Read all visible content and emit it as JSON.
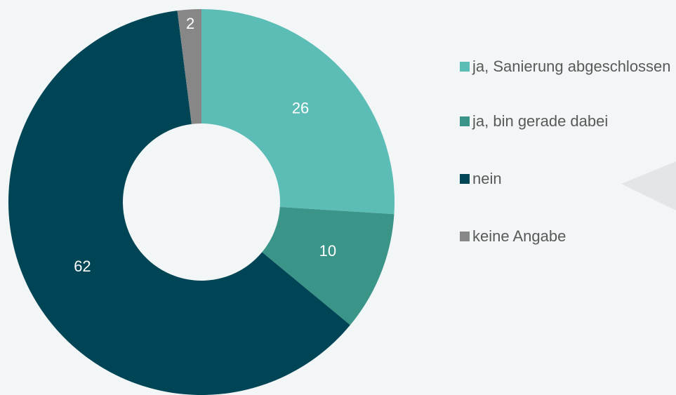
{
  "chart_data": {
    "type": "donut",
    "categories": [
      "ja, Sanierung abgeschlossen",
      "ja, bin gerade dabei",
      "nein",
      "keine Angabe"
    ],
    "values": [
      26,
      10,
      62,
      2
    ],
    "colors": [
      "#5bbdb5",
      "#3a9488",
      "#004555",
      "#878787"
    ],
    "legend": "right"
  }
}
